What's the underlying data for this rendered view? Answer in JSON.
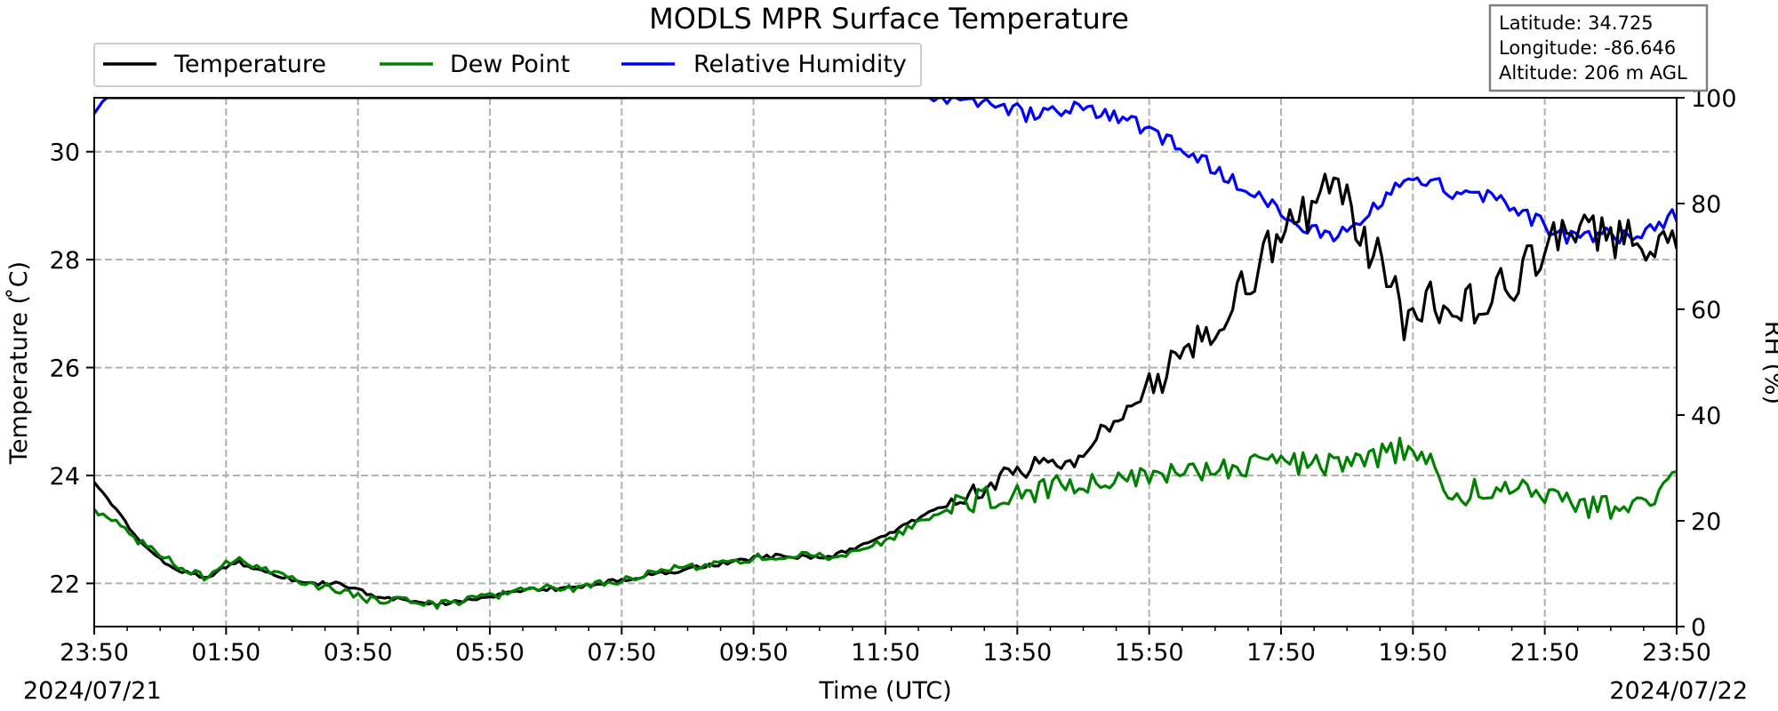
{
  "chart_data": {
    "type": "line",
    "title": "MODLS MPR Surface Temperature",
    "xlabel": "Time (UTC)",
    "ylabel": "Temperature ($^\\circ$C)",
    "ylabel_display": "Temperature ( ̊C)",
    "y2label": "RH (%)",
    "xlim": [
      "23:50",
      "23:50"
    ],
    "ylim": [
      21.2,
      31.0
    ],
    "y2lim": [
      0,
      100
    ],
    "x_ticks": [
      "23:50",
      "01:50",
      "03:50",
      "05:50",
      "07:50",
      "09:50",
      "11:50",
      "13:50",
      "15:50",
      "17:50",
      "19:50",
      "21:50",
      "23:50"
    ],
    "y_ticks": [
      "22",
      "24",
      "26",
      "28",
      "30"
    ],
    "y2_ticks": [
      "0",
      "20",
      "40",
      "60",
      "80",
      "100"
    ],
    "start_date": "2024/07/21",
    "end_date": "2024/07/22",
    "grid": true,
    "legend_position": "top-left",
    "info_box": {
      "latitude": "Latitude: 34.725",
      "longitude": "Longitude: -86.646",
      "altitude": "Altitude: 206 m AGL"
    },
    "series": [
      {
        "name": "Temperature",
        "color": "#000000",
        "axis": "left",
        "x": [
          "23:50",
          "00:30",
          "01:00",
          "01:30",
          "02:00",
          "02:30",
          "03:00",
          "03:30",
          "04:00",
          "04:30",
          "05:00",
          "05:30",
          "06:00",
          "06:30",
          "07:00",
          "07:30",
          "08:00",
          "08:30",
          "09:00",
          "09:30",
          "10:00",
          "10:30",
          "11:00",
          "11:30",
          "12:00",
          "12:30",
          "13:00",
          "13:15",
          "13:30",
          "13:50",
          "14:10",
          "14:30",
          "14:50",
          "15:10",
          "15:30",
          "15:50",
          "16:10",
          "16:30",
          "16:50",
          "17:10",
          "17:30",
          "17:50",
          "18:10",
          "18:30",
          "18:40",
          "18:50",
          "19:00",
          "19:10",
          "19:30",
          "19:45",
          "19:50",
          "20:00",
          "20:20",
          "20:40",
          "21:00",
          "21:20",
          "21:40",
          "22:00",
          "22:20",
          "22:40",
          "23:00",
          "23:20",
          "23:50"
        ],
        "values": [
          23.9,
          22.8,
          22.3,
          22.1,
          22.4,
          22.2,
          22.0,
          22.0,
          21.8,
          21.7,
          21.6,
          21.7,
          21.8,
          21.9,
          21.9,
          22.0,
          22.1,
          22.2,
          22.3,
          22.4,
          22.5,
          22.5,
          22.5,
          22.7,
          23.0,
          23.3,
          23.6,
          23.7,
          23.9,
          24.1,
          24.2,
          24.2,
          24.3,
          24.9,
          25.3,
          25.6,
          26.0,
          26.4,
          26.9,
          27.4,
          27.9,
          28.4,
          28.8,
          29.4,
          29.9,
          29.0,
          28.6,
          28.3,
          27.6,
          26.7,
          27.0,
          27.3,
          27.1,
          27.2,
          27.4,
          27.6,
          28.1,
          28.3,
          28.5,
          28.4,
          28.5,
          28.3,
          28.2
        ]
      },
      {
        "name": "Dew Point",
        "color": "#008000",
        "axis": "left",
        "x": [
          "23:50",
          "00:30",
          "01:00",
          "01:30",
          "02:00",
          "02:30",
          "03:00",
          "03:30",
          "04:00",
          "04:30",
          "05:00",
          "05:30",
          "06:00",
          "06:30",
          "07:00",
          "07:30",
          "08:00",
          "08:30",
          "09:00",
          "09:30",
          "10:00",
          "10:30",
          "11:00",
          "11:30",
          "12:00",
          "12:30",
          "13:00",
          "13:30",
          "14:00",
          "14:30",
          "15:00",
          "15:30",
          "16:00",
          "16:30",
          "17:00",
          "17:30",
          "18:00",
          "18:30",
          "19:00",
          "19:30",
          "19:50",
          "20:10",
          "20:30",
          "21:00",
          "21:30",
          "22:00",
          "22:30",
          "23:00",
          "23:20",
          "23:50"
        ],
        "values": [
          23.4,
          22.8,
          22.4,
          22.1,
          22.5,
          22.2,
          22.0,
          21.9,
          21.7,
          21.7,
          21.6,
          21.7,
          21.8,
          21.9,
          21.9,
          22.0,
          22.1,
          22.3,
          22.3,
          22.4,
          22.5,
          22.5,
          22.5,
          22.6,
          22.9,
          23.2,
          23.5,
          23.6,
          23.7,
          23.8,
          23.8,
          23.9,
          24.0,
          24.0,
          24.1,
          24.2,
          24.2,
          24.2,
          24.3,
          24.4,
          24.6,
          24.1,
          23.6,
          23.8,
          23.7,
          23.7,
          23.4,
          23.4,
          23.4,
          23.9
        ]
      },
      {
        "name": "Relative Humidity",
        "color": "#0000ff",
        "axis": "right",
        "x": [
          "23:50",
          "00:00",
          "01:00",
          "03:00",
          "05:00",
          "07:00",
          "09:00",
          "11:00",
          "12:30",
          "13:00",
          "13:30",
          "14:00",
          "14:30",
          "15:00",
          "15:30",
          "16:00",
          "16:30",
          "17:00",
          "17:30",
          "17:50",
          "18:10",
          "18:30",
          "18:50",
          "19:10",
          "19:30",
          "19:50",
          "20:10",
          "20:30",
          "20:50",
          "21:10",
          "21:30",
          "21:50",
          "22:10",
          "22:30",
          "22:50",
          "23:10",
          "23:30",
          "23:50"
        ],
        "values": [
          97,
          100,
          100,
          100,
          100,
          100,
          100,
          100,
          100,
          99,
          98,
          97,
          98,
          97,
          96,
          93,
          89,
          85,
          82,
          79,
          75,
          74,
          75,
          78,
          82,
          85,
          84,
          81,
          82,
          80,
          78,
          76,
          74,
          74,
          74,
          74,
          75,
          78
        ]
      }
    ]
  }
}
